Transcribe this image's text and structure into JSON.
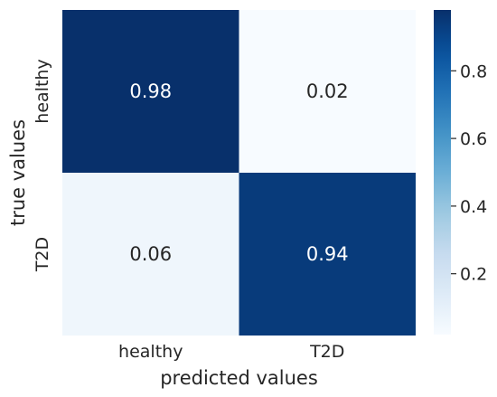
{
  "chart_data": {
    "type": "heatmap",
    "title": "",
    "xlabel": "predicted values",
    "ylabel": "true values",
    "x_categories": [
      "healthy",
      "T2D"
    ],
    "y_categories": [
      "healthy",
      "T2D"
    ],
    "values": [
      [
        0.98,
        0.02
      ],
      [
        0.06,
        0.94
      ]
    ],
    "value_labels": [
      [
        "0.98",
        "0.02"
      ],
      [
        "0.06",
        "0.94"
      ]
    ],
    "colorbar": {
      "range": [
        0.02,
        0.98
      ],
      "ticks": [
        0.2,
        0.4,
        0.6,
        0.8
      ],
      "tick_labels": [
        "0.2",
        "0.4",
        "0.6",
        "0.8"
      ],
      "colormap": "Blues",
      "low_color": "#f7fbff",
      "high_color": "#08306b"
    }
  }
}
